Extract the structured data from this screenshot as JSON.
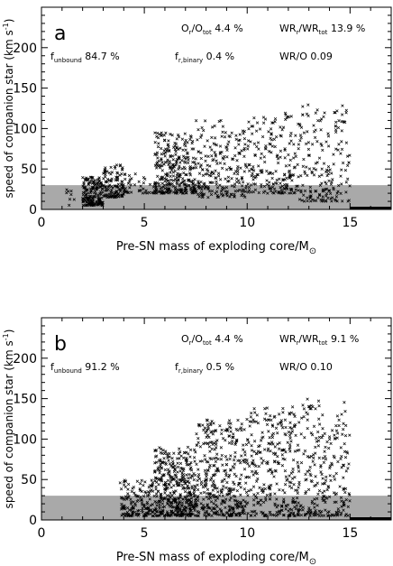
{
  "chart_data": [
    {
      "type": "scatter",
      "panel_label": "a",
      "xlabel": "Pre-SN mass of exploding core/M",
      "xlabel_sub": "⊙",
      "ylabel": "speed of companion star (km s",
      "ylabel_sup": "-1",
      "ylabel_close": ")",
      "xlim": [
        0,
        17
      ],
      "ylim": [
        0,
        250
      ],
      "xticks": [
        "0",
        "5",
        "10",
        "15"
      ],
      "yticks": [
        "0",
        "50",
        "100",
        "150",
        "200"
      ],
      "shaded_band_max": 30,
      "stats": {
        "ratio_o": {
          "base": "O",
          "sub1": "r",
          "mid": "/O",
          "sub2": "tot",
          "value": "4.4 %"
        },
        "ratio_wr": {
          "base": "WR",
          "sub1": "r",
          "mid": "/WR",
          "sub2": "tot",
          "value": "13.9 %"
        },
        "unbound": {
          "base": "f",
          "sub": "unbound",
          "value": "84.7 %"
        },
        "binary": {
          "base": "f",
          "sub": "r,binary",
          "value": "0.4 %"
        },
        "wr_o": {
          "text": "WR/O 0.09"
        }
      },
      "clusters": [
        {
          "x_range": [
            1.2,
            1.6
          ],
          "y_range": [
            5,
            25
          ],
          "n": 8
        },
        {
          "x_range": [
            2.0,
            3.0
          ],
          "y_range": [
            5,
            40
          ],
          "n": 180
        },
        {
          "x_range": [
            3.0,
            4.0
          ],
          "y_range": [
            15,
            55
          ],
          "n": 120
        },
        {
          "x_range": [
            4.0,
            5.5
          ],
          "y_range": [
            20,
            45
          ],
          "n": 40
        },
        {
          "x_range": [
            5.5,
            7.5
          ],
          "y_range": [
            20,
            95
          ],
          "n": 300
        },
        {
          "x_range": [
            7.5,
            10.0
          ],
          "y_range": [
            15,
            110
          ],
          "n": 220
        },
        {
          "x_range": [
            10.0,
            12.5
          ],
          "y_range": [
            20,
            120
          ],
          "n": 200
        },
        {
          "x_range": [
            12.5,
            15.0
          ],
          "y_range": [
            10,
            130
          ],
          "n": 180
        }
      ],
      "baseline_x_range": [
        15.0,
        17.0
      ]
    },
    {
      "type": "scatter",
      "panel_label": "b",
      "xlabel": "Pre-SN mass of exploding core/M",
      "xlabel_sub": "⊙",
      "ylabel": "speed of companion star (km s",
      "ylabel_sup": "-1",
      "ylabel_close": ")",
      "xlim": [
        0,
        17
      ],
      "ylim": [
        0,
        250
      ],
      "xticks": [
        "0",
        "5",
        "10",
        "15"
      ],
      "yticks": [
        "0",
        "50",
        "100",
        "150",
        "200"
      ],
      "shaded_band_max": 30,
      "stats": {
        "ratio_o": {
          "base": "O",
          "sub1": "r",
          "mid": "/O",
          "sub2": "tot",
          "value": "4.4 %"
        },
        "ratio_wr": {
          "base": "WR",
          "sub1": "r",
          "mid": "/WR",
          "sub2": "tot",
          "value": "9.1 %"
        },
        "unbound": {
          "base": "f",
          "sub": "unbound",
          "value": "91.2 %"
        },
        "binary": {
          "base": "f",
          "sub": "r,binary",
          "value": "0.5 %"
        },
        "wr_o": {
          "text": "WR/O 0.10"
        }
      },
      "clusters": [
        {
          "x_range": [
            3.8,
            5.5
          ],
          "y_range": [
            5,
            50
          ],
          "n": 150
        },
        {
          "x_range": [
            5.5,
            7.5
          ],
          "y_range": [
            5,
            90
          ],
          "n": 420
        },
        {
          "x_range": [
            7.5,
            10.0
          ],
          "y_range": [
            5,
            125
          ],
          "n": 380
        },
        {
          "x_range": [
            10.0,
            12.5
          ],
          "y_range": [
            5,
            140
          ],
          "n": 300
        },
        {
          "x_range": [
            12.5,
            15.0
          ],
          "y_range": [
            5,
            150
          ],
          "n": 240
        }
      ],
      "baseline_x_range": [
        15.0,
        17.0
      ]
    }
  ]
}
